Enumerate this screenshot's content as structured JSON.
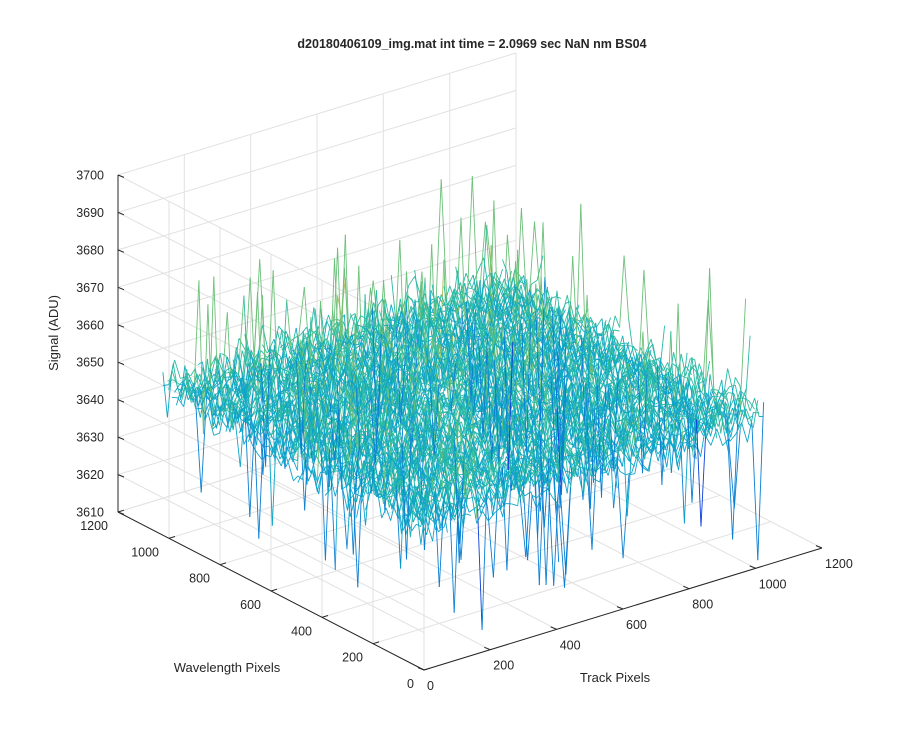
{
  "chart_data": {
    "type": "surface",
    "title": "d20180406109_img.mat int time = 2.0969 sec  NaN nm BS04",
    "xlabel": "Track Pixels",
    "ylabel": "Wavelength Pixels",
    "zlabel": "Signal (ADU)",
    "xlim": [
      0,
      1200
    ],
    "ylim": [
      0,
      1200
    ],
    "zlim": [
      3610,
      3700
    ],
    "xticks": [
      "0",
      "200",
      "400",
      "600",
      "800",
      "1000",
      "1200"
    ],
    "yticks": [
      "0",
      "200",
      "400",
      "600",
      "800",
      "1000",
      "1200"
    ],
    "zticks": [
      "3610",
      "3620",
      "3630",
      "3640",
      "3650",
      "3660",
      "3670",
      "3680",
      "3690",
      "3700"
    ],
    "grid": true,
    "colormap": [
      "#0b3fd8",
      "#0a7fd2",
      "#0ea5c9",
      "#2cbaa4",
      "#6cc07a",
      "#a9bf58",
      "#d8b740"
    ],
    "surface_mean": 3650,
    "surface_range": [
      3620,
      3690
    ],
    "surface_extent": {
      "x": [
        0,
        1024
      ],
      "y": [
        0,
        1024
      ]
    }
  }
}
